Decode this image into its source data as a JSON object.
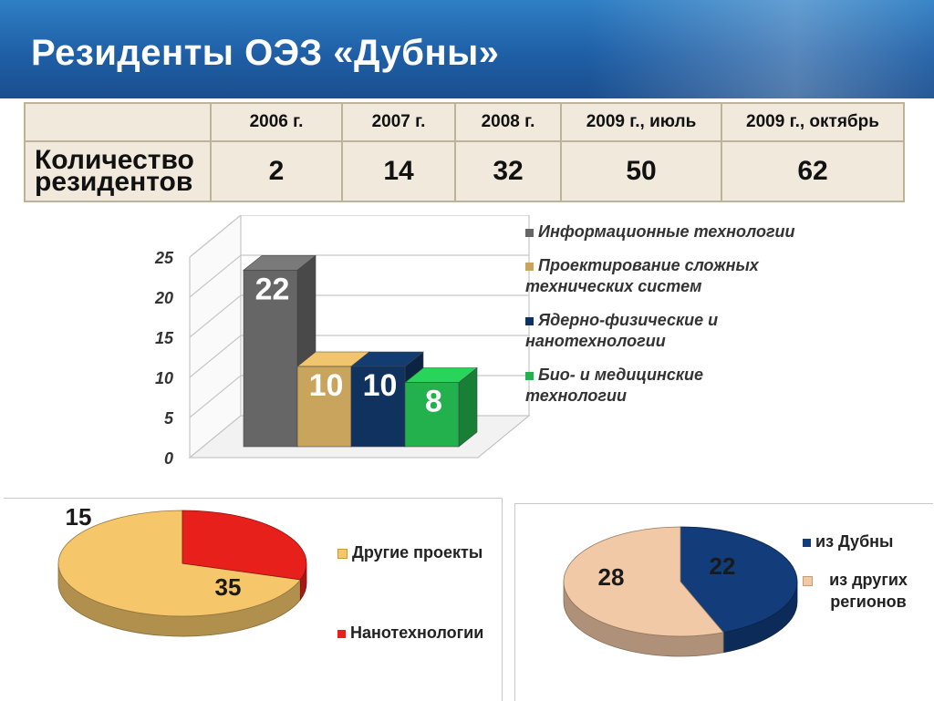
{
  "title": "Резиденты ОЭЗ «Дубны»",
  "table": {
    "row_label": "Количество резидентов",
    "headers": [
      "2006 г.",
      "2007 г.",
      "2008 г.",
      "2009 г., июль",
      "2009 г., октябрь"
    ],
    "values": [
      "2",
      "14",
      "32",
      "50",
      "62"
    ]
  },
  "colors": {
    "it": "#666666",
    "design": "#c9a45c",
    "nuclear": "#10325e",
    "bio": "#22b14c",
    "other": "#f6c66a",
    "nano": "#e8201c",
    "dubna": "#123c7a",
    "regions": "#f2c9a6"
  },
  "chart_data": [
    {
      "type": "bar",
      "categories": [
        "Информационные технологии",
        "Проектирование сложных технических систем",
        "Ядерно-физические и нанотехнологии",
        "Био- и медицинские технологии"
      ],
      "values": [
        22,
        10,
        10,
        8
      ],
      "ylim": [
        0,
        25
      ],
      "yticks": [
        "0",
        "5",
        "10",
        "15",
        "20",
        "25"
      ],
      "grid": true,
      "legend": "right"
    },
    {
      "type": "pie",
      "labels": [
        "Другие проекты",
        "Нанотехнологии"
      ],
      "values": [
        35,
        15
      ],
      "legend": "right"
    },
    {
      "type": "pie",
      "labels": [
        "из Дубны",
        "из других регионов"
      ],
      "values": [
        22,
        28
      ],
      "legend": "right"
    }
  ]
}
